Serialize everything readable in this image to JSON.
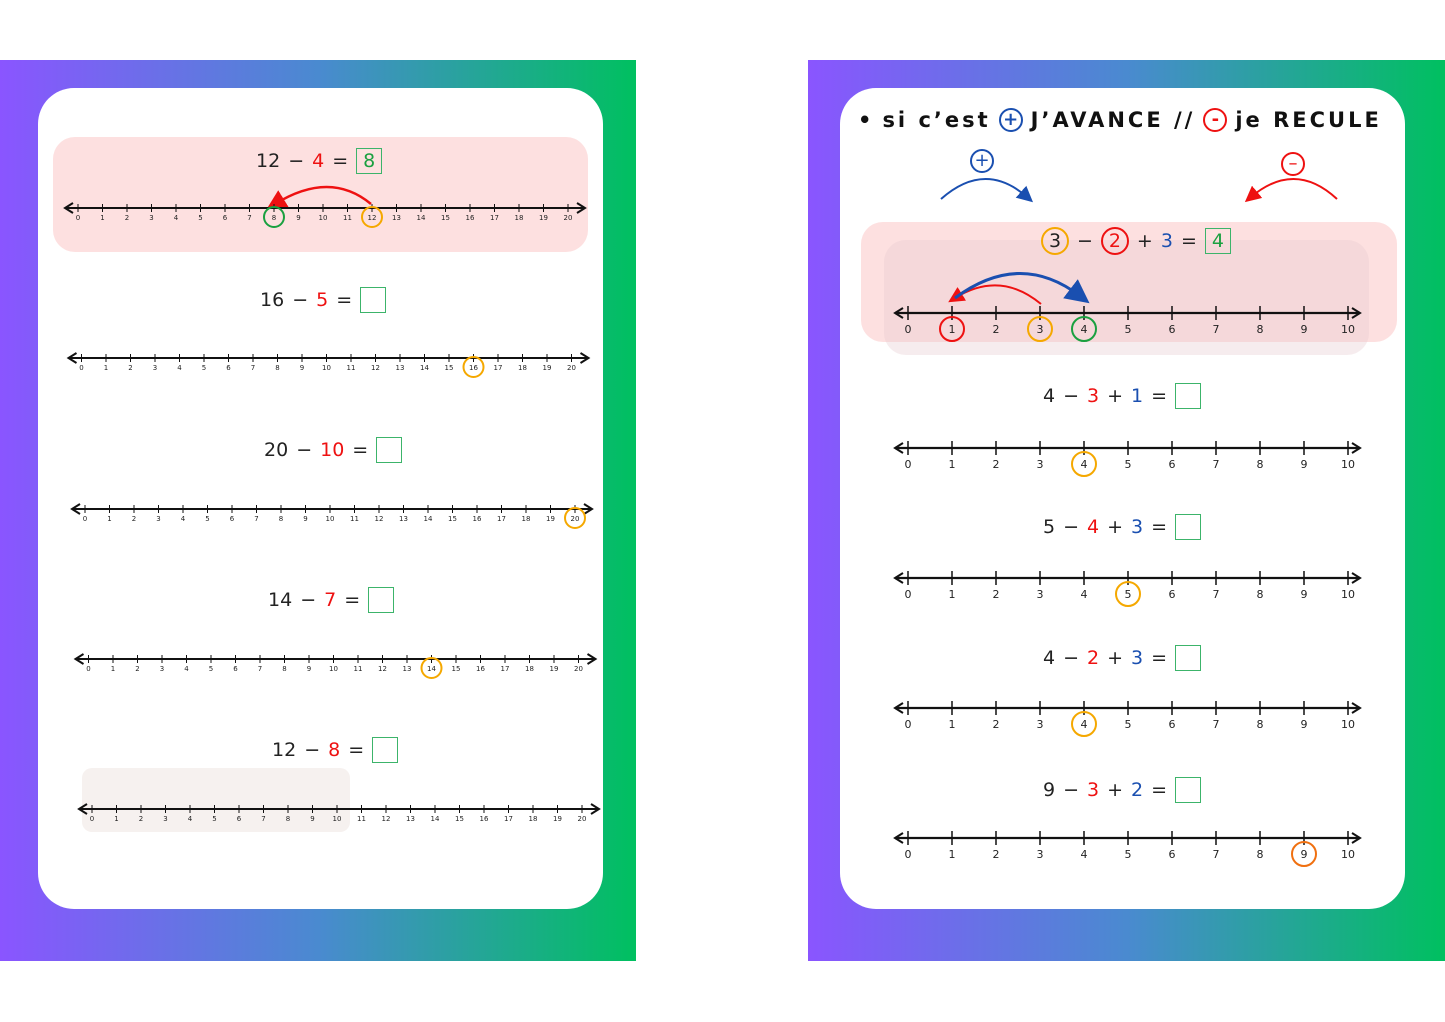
{
  "colors": {
    "red": "#ee1111",
    "blue": "#1a4fb0",
    "green": "#1aa040",
    "orange": "#f5a800",
    "highlight": "#fde0e0"
  },
  "left": {
    "exercises": [
      {
        "parts": [
          {
            "t": "12"
          },
          {
            "t": "−"
          },
          {
            "t": "4",
            "c": "red"
          },
          {
            "t": "="
          }
        ],
        "answer": "8",
        "start": 12,
        "end": 8,
        "max": 20
      },
      {
        "parts": [
          {
            "t": "16"
          },
          {
            "t": "−"
          },
          {
            "t": "5",
            "c": "red"
          },
          {
            "t": "="
          }
        ],
        "answer": "",
        "start": 16,
        "max": 20
      },
      {
        "parts": [
          {
            "t": "20"
          },
          {
            "t": "−"
          },
          {
            "t": "10",
            "c": "red"
          },
          {
            "t": "="
          }
        ],
        "answer": "",
        "start": 20,
        "max": 20
      },
      {
        "parts": [
          {
            "t": "14"
          },
          {
            "t": "−"
          },
          {
            "t": "7",
            "c": "red"
          },
          {
            "t": "="
          }
        ],
        "answer": "",
        "start": 14,
        "max": 20
      },
      {
        "parts": [
          {
            "t": "12"
          },
          {
            "t": "−"
          },
          {
            "t": "8",
            "c": "red"
          },
          {
            "t": "="
          }
        ],
        "answer": "",
        "max": 20
      }
    ]
  },
  "right": {
    "header": {
      "bullet": "•",
      "text1": "si c’est",
      "plus": "+",
      "text2": "J’AVANCE //",
      "minus": "-",
      "text3": "je RECULE"
    },
    "legend": {
      "plus": "+",
      "minus": "–"
    },
    "exercises": [
      {
        "parts": [
          {
            "t": "3",
            "circle": "orange"
          },
          {
            "t": "−"
          },
          {
            "t": "2",
            "c": "red",
            "circle": "red"
          },
          {
            "t": "+"
          },
          {
            "t": "3",
            "c": "blue"
          },
          {
            "t": "="
          }
        ],
        "answer": "4",
        "circles": {
          "1": "red",
          "3": "orange",
          "4": "green"
        },
        "max": 10
      },
      {
        "parts": [
          {
            "t": "4"
          },
          {
            "t": "−"
          },
          {
            "t": "3",
            "c": "red"
          },
          {
            "t": "+"
          },
          {
            "t": "1",
            "c": "blue"
          },
          {
            "t": "="
          }
        ],
        "answer": "",
        "circles": {
          "4": "orange"
        },
        "max": 10
      },
      {
        "parts": [
          {
            "t": "5"
          },
          {
            "t": "−"
          },
          {
            "t": "4",
            "c": "red"
          },
          {
            "t": "+"
          },
          {
            "t": "3",
            "c": "blue"
          },
          {
            "t": "="
          }
        ],
        "answer": "",
        "circles": {
          "5": "orange"
        },
        "max": 10
      },
      {
        "parts": [
          {
            "t": "4"
          },
          {
            "t": "−"
          },
          {
            "t": "2",
            "c": "red"
          },
          {
            "t": "+"
          },
          {
            "t": "3",
            "c": "blue"
          },
          {
            "t": "="
          }
        ],
        "answer": "",
        "circles": {
          "4": "orange"
        },
        "max": 10
      },
      {
        "parts": [
          {
            "t": "9"
          },
          {
            "t": "−"
          },
          {
            "t": "3",
            "c": "red"
          },
          {
            "t": "+"
          },
          {
            "t": "2",
            "c": "blue"
          },
          {
            "t": "="
          }
        ],
        "answer": "",
        "circles": {
          "9": "#f07010"
        },
        "max": 10
      }
    ]
  }
}
